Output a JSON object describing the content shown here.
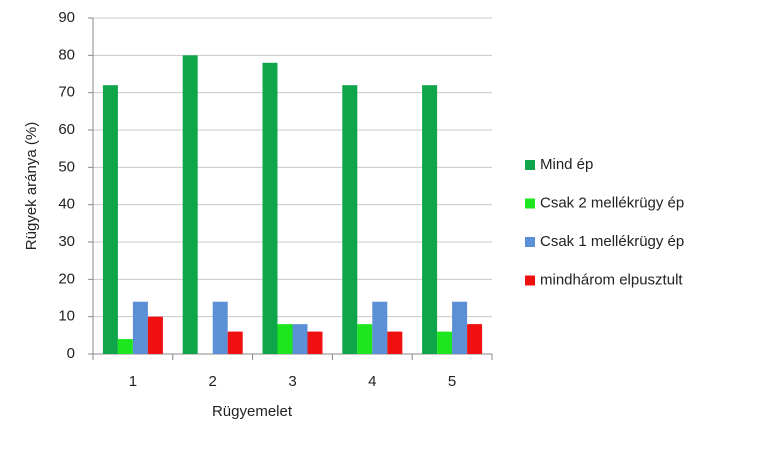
{
  "chart_data": {
    "type": "bar",
    "x_label": "Rügyemelet",
    "y_label": "Rügyek aránya (%)",
    "categories": [
      "1",
      "2",
      "3",
      "4",
      "5"
    ],
    "series": [
      {
        "name": "Mind ép",
        "color": "#0fa54a",
        "values": [
          72,
          80,
          78,
          72,
          72
        ]
      },
      {
        "name": "Csak 2 mellékrügy ép",
        "color": "#1ee61e",
        "values": [
          4,
          0,
          8,
          8,
          6
        ]
      },
      {
        "name": "Csak 1 mellékrügy ép",
        "color": "#5b8fd6",
        "values": [
          14,
          14,
          8,
          14,
          14
        ]
      },
      {
        "name": "mindhárom elpusztult",
        "color": "#f01010",
        "values": [
          10,
          6,
          6,
          6,
          8
        ]
      }
    ],
    "ylim": [
      0,
      90
    ],
    "yticks": [
      0,
      10,
      20,
      30,
      40,
      50,
      60,
      70,
      80,
      90
    ],
    "grid": true,
    "legend": "right"
  }
}
